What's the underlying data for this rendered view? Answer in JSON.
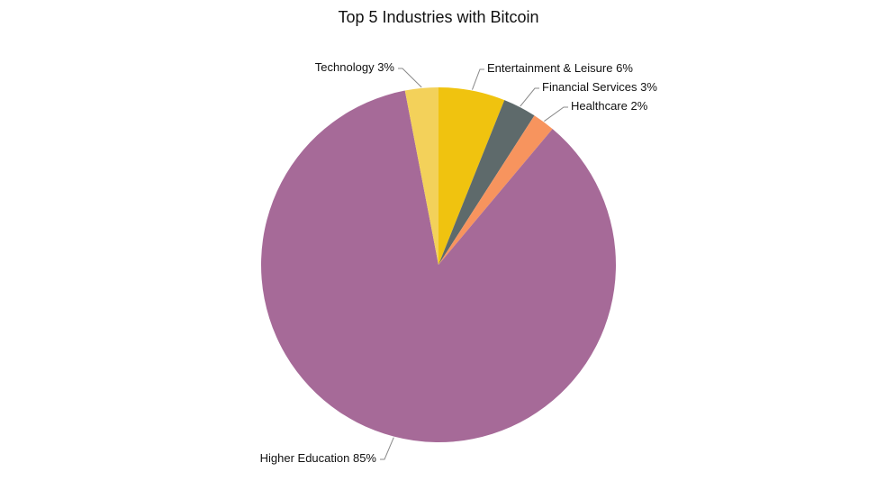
{
  "chart_data": {
    "type": "pie",
    "title": "Top 5 Industries with Bitcoin",
    "categories": [
      "Entertainment & Leisure",
      "Financial Services",
      "Healthcare",
      "Higher Education",
      "Technology"
    ],
    "values": [
      6,
      3,
      2,
      85,
      3
    ],
    "value_labels": [
      "6%",
      "3%",
      "2%",
      "85%",
      "3%"
    ],
    "colors": [
      "#f0c30f",
      "#5e6a6b",
      "#f7945e",
      "#a66a98",
      "#f3d15a"
    ]
  }
}
